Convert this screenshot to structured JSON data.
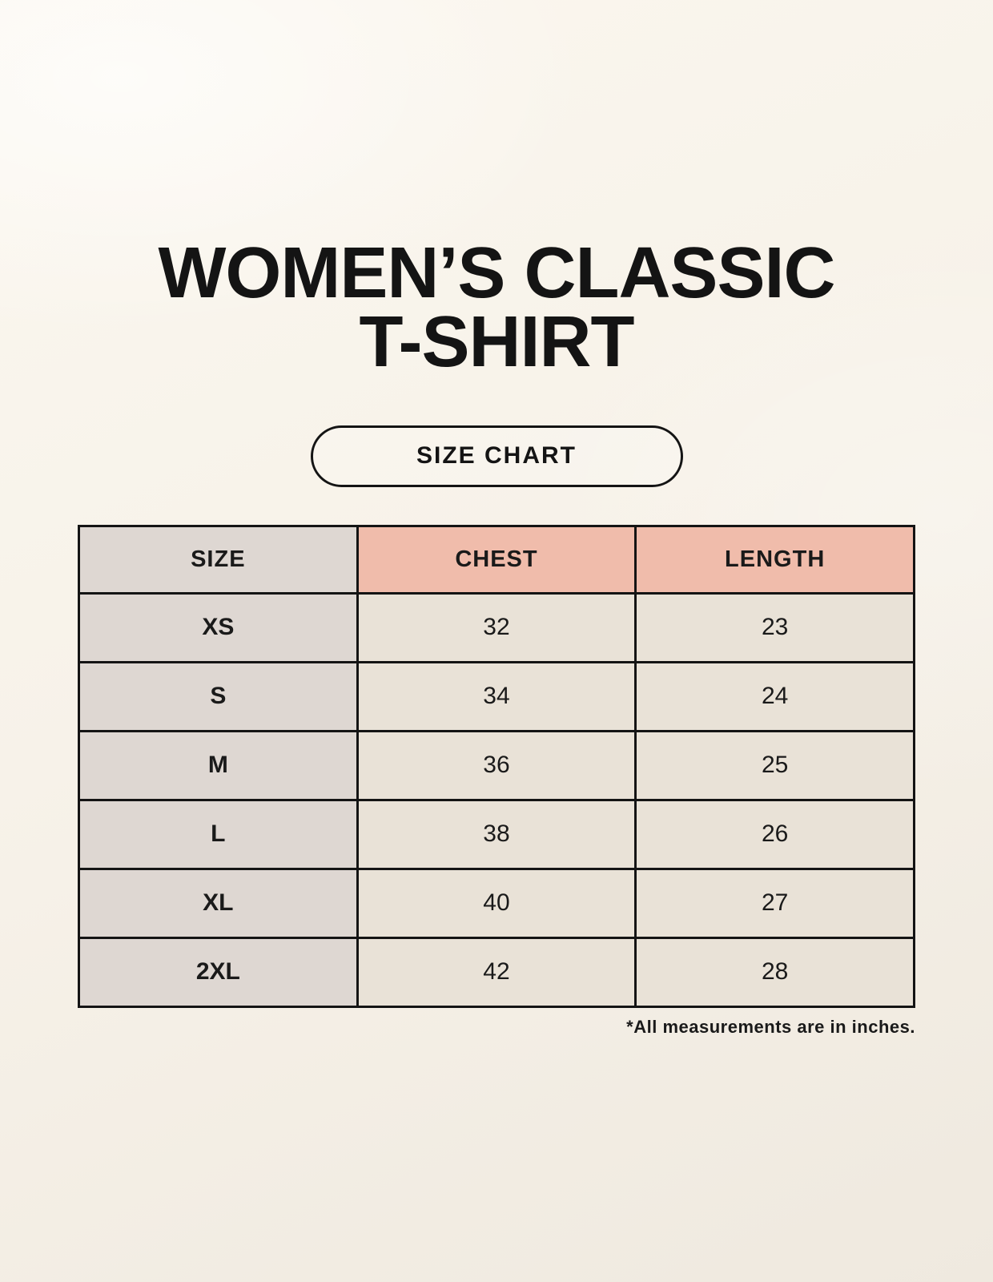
{
  "page": {
    "title_line1": "WOMEN’S CLASSIC",
    "title_line2": "T-SHIRT",
    "size_chart_label": "SIZE CHART",
    "footnote": "*All measurements are in inches."
  },
  "chart_data": {
    "type": "table",
    "title": "SIZE CHART",
    "columns": [
      "SIZE",
      "CHEST",
      "LENGTH"
    ],
    "rows": [
      {
        "size": "XS",
        "chest": "32",
        "length": "23"
      },
      {
        "size": "S",
        "chest": "34",
        "length": "24"
      },
      {
        "size": "M",
        "chest": "36",
        "length": "25"
      },
      {
        "size": "L",
        "chest": "38",
        "length": "26"
      },
      {
        "size": "XL",
        "chest": "40",
        "length": "27"
      },
      {
        "size": "2XL",
        "chest": "42",
        "length": "28"
      }
    ],
    "units": "inches",
    "footnote": "*All measurements are in inches."
  },
  "colors": {
    "page_background": "#f7f2e9",
    "size_column_bg": "#ded7d2",
    "measure_header_bg": "#f0bcab",
    "data_cell_bg": "#e9e2d7",
    "border": "#141414",
    "text": "#1a1a1a"
  }
}
